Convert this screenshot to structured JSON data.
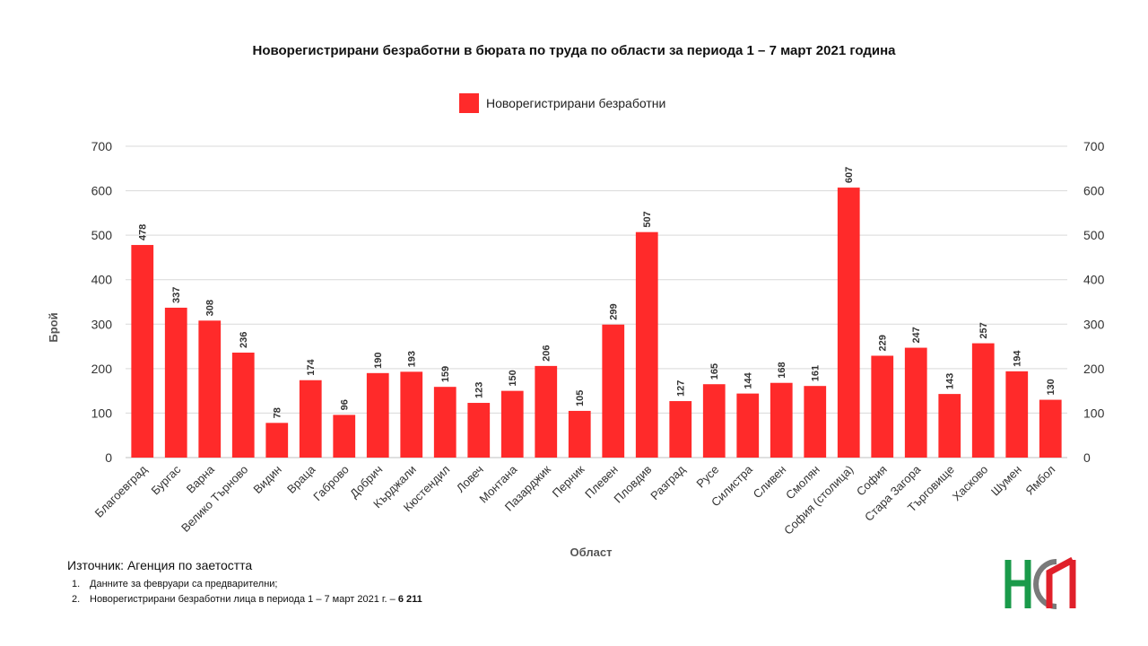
{
  "chart_data": {
    "type": "bar",
    "title": "Новорегистрирани безработни в бюрата по труда по области за периода 1 – 7 март 2021 година",
    "xlabel": "Област",
    "ylabel": "Брой",
    "legend": "top-center",
    "grid": true,
    "ylim": [
      0,
      700
    ],
    "yticks": [
      0,
      100,
      200,
      300,
      400,
      500,
      600,
      700
    ],
    "bar_color": "#ff2a2a",
    "categories": [
      "Благоевград",
      "Бургас",
      "Варна",
      "Велико Търново",
      "Видин",
      "Враца",
      "Габрово",
      "Добрич",
      "Кърджали",
      "Кюстендил",
      "Ловеч",
      "Монтана",
      "Пазарджик",
      "Перник",
      "Плевен",
      "Пловдив",
      "Разград",
      "Русе",
      "Силистра",
      "Сливен",
      "Смолян",
      "София (столица)",
      "София",
      "Стара Загора",
      "Търговище",
      "Хасково",
      "Шумен",
      "Ямбол"
    ],
    "series": [
      {
        "name": "Новорегистрирани безработни",
        "values": [
          478,
          337,
          308,
          236,
          78,
          174,
          96,
          190,
          193,
          159,
          123,
          150,
          206,
          105,
          299,
          507,
          127,
          165,
          144,
          168,
          161,
          607,
          229,
          247,
          143,
          257,
          194,
          130
        ]
      }
    ]
  },
  "footer": {
    "source": "Източник: Агенция по заетостта",
    "notes": [
      {
        "num": "1.",
        "text": "Данните за февруари са предварителни;",
        "bold": ""
      },
      {
        "num": "2.",
        "text": "Новорегистрирани безработни лица в периода 1 – 7 март 2021 г. – ",
        "bold": "6 211"
      }
    ]
  },
  "logo": {
    "name": "НСИ",
    "colors": {
      "green": "#1a9a4a",
      "red": "#e0202a",
      "gray": "#7a7a7a"
    }
  }
}
